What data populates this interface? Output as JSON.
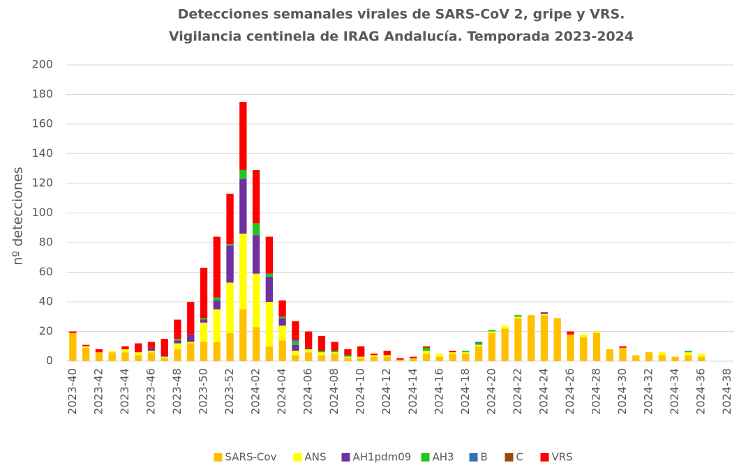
{
  "chart_data": {
    "type": "stacked_bar",
    "title": [
      "Detecciones semanales virales de SARS-CoV 2, gripe y VRS.",
      "Vigilancia centinela de IRAG Andalucía. Temporada 2023-2024"
    ],
    "y_label": "nº detecciones",
    "categories": [
      "2023-40",
      null,
      "2023-42",
      null,
      "2023-44",
      null,
      "2023-46",
      null,
      "2023-48",
      null,
      "2023-50",
      null,
      "2023-52",
      null,
      "2024-02",
      null,
      "2024-04",
      null,
      "2024-06",
      null,
      "2024-08",
      null,
      "2024-10",
      null,
      "2024-12",
      null,
      "2024-14",
      null,
      "2024-16",
      null,
      "2024-18",
      null,
      "2024-20",
      null,
      "2024-22",
      null,
      "2024-24",
      null,
      "2024-26",
      null,
      "2024-28",
      null,
      "2024-30",
      null,
      "2024-32",
      null,
      "2024-34",
      null,
      "2024-36",
      null,
      "2024-38"
    ],
    "ylim": [
      0,
      200
    ],
    "yticks": [
      0,
      20,
      40,
      60,
      80,
      100,
      120,
      140,
      160,
      180,
      200
    ],
    "grid": true,
    "legend": "bottom",
    "series": [
      {
        "name": "SARS-Cov",
        "color": "#ffc000",
        "values": [
          19,
          9,
          6,
          6,
          6,
          4,
          6,
          2,
          8,
          12,
          13,
          13,
          19,
          35,
          23,
          10,
          14,
          4,
          6,
          4,
          5,
          2,
          2,
          3,
          3,
          1,
          2,
          5,
          3,
          5,
          5,
          10,
          19,
          22,
          29,
          31,
          31,
          29,
          18,
          16,
          19,
          8,
          9,
          4,
          6,
          4,
          3,
          4,
          3,
          0,
          0
        ]
      },
      {
        "name": "ANS",
        "color": "#ffff00",
        "values": [
          0,
          1,
          0,
          1,
          2,
          2,
          1,
          1,
          4,
          1,
          13,
          22,
          34,
          51,
          36,
          30,
          10,
          3,
          2,
          2,
          1,
          1,
          1,
          1,
          1,
          0,
          0,
          2,
          2,
          1,
          1,
          1,
          1,
          2,
          1,
          0,
          1,
          0,
          0,
          2,
          1,
          0,
          0,
          0,
          0,
          2,
          0,
          2,
          2,
          0,
          0
        ]
      },
      {
        "name": "AH1pdm09",
        "color": "#7030a0",
        "values": [
          0,
          0,
          0,
          0,
          0,
          0,
          2,
          1,
          2,
          5,
          2,
          6,
          25,
          37,
          26,
          17,
          5,
          4,
          1,
          0,
          0,
          0,
          0,
          0,
          0,
          0,
          0,
          0,
          0,
          0,
          0,
          0,
          0,
          0,
          0,
          0,
          1,
          0,
          0,
          0,
          0,
          0,
          0,
          0,
          0,
          0,
          0,
          0,
          0,
          0,
          0
        ]
      },
      {
        "name": "AH3",
        "color": "#22c422",
        "values": [
          0,
          0,
          0,
          0,
          0,
          0,
          0,
          0,
          1,
          0,
          1,
          2,
          1,
          6,
          8,
          2,
          1,
          2,
          0,
          1,
          1,
          1,
          0,
          0,
          0,
          0,
          0,
          2,
          0,
          0,
          1,
          1,
          1,
          0,
          1,
          0,
          0,
          0,
          0,
          0,
          0,
          0,
          0,
          0,
          0,
          0,
          0,
          1,
          0,
          0,
          0
        ]
      },
      {
        "name": "B",
        "color": "#2e75b6",
        "values": [
          0,
          0,
          0,
          0,
          0,
          0,
          0,
          0,
          0,
          0,
          0,
          0,
          0,
          0,
          0,
          0,
          0,
          1,
          0,
          0,
          0,
          0,
          0,
          0,
          0,
          0,
          0,
          0,
          0,
          0,
          0,
          1,
          0,
          0,
          0,
          0,
          0,
          0,
          0,
          0,
          0,
          0,
          0,
          0,
          0,
          0,
          0,
          0,
          0,
          0,
          0
        ]
      },
      {
        "name": "C",
        "color": "#9c4a0e",
        "values": [
          0,
          0,
          0,
          0,
          0,
          0,
          0,
          0,
          0,
          0,
          0,
          0,
          0,
          0,
          0,
          0,
          0,
          0,
          0,
          0,
          0,
          0,
          0,
          0,
          0,
          0,
          0,
          0,
          0,
          0,
          0,
          0,
          0,
          0,
          0,
          0,
          0,
          0,
          0,
          0,
          0,
          0,
          0,
          0,
          0,
          0,
          0,
          0,
          0,
          0,
          0
        ]
      },
      {
        "name": "VRS",
        "color": "#ff0000",
        "values": [
          1,
          1,
          2,
          0,
          2,
          6,
          4,
          11,
          13,
          22,
          34,
          41,
          34,
          46,
          36,
          25,
          11,
          13,
          11,
          10,
          6,
          4,
          7,
          1,
          3,
          1,
          1,
          1,
          0,
          1,
          0,
          0,
          0,
          0,
          0,
          0,
          0,
          0,
          2,
          0,
          0,
          0,
          1,
          0,
          0,
          0,
          0,
          0,
          0,
          0,
          0
        ]
      }
    ]
  }
}
